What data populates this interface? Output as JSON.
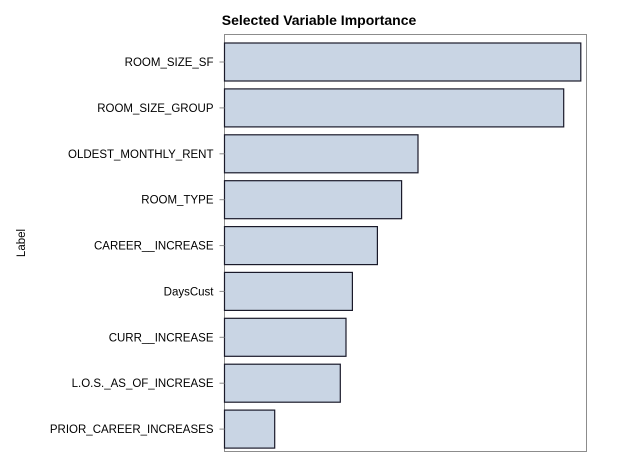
{
  "chart_data": {
    "type": "bar",
    "orientation": "horizontal",
    "title": "Selected Variable Importance",
    "ylabel": "Label",
    "xlabel": "",
    "categories": [
      "ROOM_SIZE_SF",
      "ROOM_SIZE_GROUP",
      "OLDEST_MONTHLY_RENT",
      "ROOM_TYPE",
      "CAREER__INCREASE",
      "DaysCust",
      "CURR__INCREASE",
      "L.O.S._AS_OF_INCREASE",
      "PRIOR_CAREER_INCREASES"
    ],
    "values": [
      1.0,
      0.952,
      0.543,
      0.497,
      0.429,
      0.359,
      0.341,
      0.325,
      0.141
    ],
    "xlim": [
      0,
      1.016
    ],
    "x_axis_shown": false,
    "grid": false,
    "legend": "none",
    "bar_fill": "#c9d5e4",
    "bar_stroke": "#1a1a2a"
  }
}
